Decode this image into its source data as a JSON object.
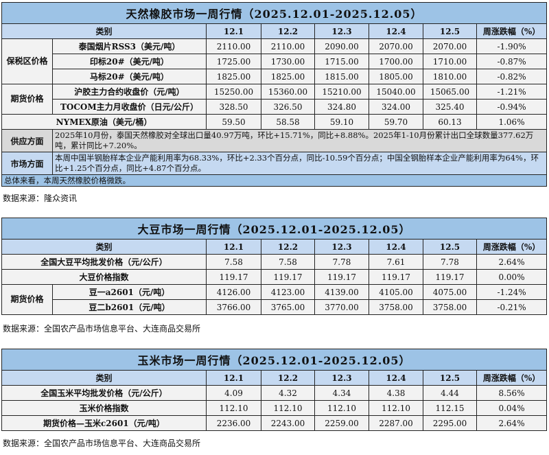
{
  "columns_header": {
    "category": "类别",
    "dates": [
      "12.1",
      "12.2",
      "12.3",
      "12.4",
      "12.5"
    ],
    "change": "周涨跌幅（%）"
  },
  "rubber": {
    "title": "天然橡胶市场一周行情（2025.12.01-2025.12.05）",
    "groups": [
      {
        "group": "保税区价格",
        "rows": [
          {
            "label": "泰国烟片RSS3（美元/吨）",
            "values": [
              "2110.00",
              "2110.00",
              "2090.00",
              "2070.00",
              "2070.00"
            ],
            "change": "-1.90%"
          },
          {
            "label": "印标20#（美元/吨）",
            "values": [
              "1725.00",
              "1730.00",
              "1715.00",
              "1700.00",
              "1710.00"
            ],
            "change": "-0.87%"
          },
          {
            "label": "马标20#（美元/吨）",
            "values": [
              "1825.00",
              "1825.00",
              "1815.00",
              "1805.00",
              "1810.00"
            ],
            "change": "-0.82%"
          }
        ]
      },
      {
        "group": "期货价格",
        "rows": [
          {
            "label": "沪胶主力合约收盘价（元/吨）",
            "values": [
              "15250.00",
              "15360.00",
              "15210.00",
              "15040.00",
              "15065.00"
            ],
            "change": "-1.21%"
          },
          {
            "label": "TOCOM主力月收盘价（日元/公斤）",
            "values": [
              "328.50",
              "326.50",
              "324.80",
              "324.00",
              "325.40"
            ],
            "change": "-0.94%"
          }
        ]
      },
      {
        "group": null,
        "rows": [
          {
            "label": "NYMEX原油（美元/桶）",
            "values": [
              "59.50",
              "58.58",
              "59.10",
              "59.70",
              "60.13"
            ],
            "change": "1.06%"
          }
        ]
      }
    ],
    "supply": {
      "label": "供应方面",
      "text": "2025年10月份，泰国天然橡胶对全球出口量40.97万吨，环比+15.71%，同比+8.88%。2025年1-10月份累计出口全球数量377.62万吨，累计同比+7.20%。"
    },
    "market": {
      "label": "市场方面",
      "text": "本周中国半钢胎样本企业产能利用率为68.33%，环比+2.33个百分点，同比-10.59个百分点；中国全钢胎样本企业产能利用率为64%，环比+1.25个百分点，同比+4.87个百分点。"
    },
    "summary": "总体来看，本周天然橡胶价格微跌。",
    "source": "数据来源：隆众资讯"
  },
  "soybean": {
    "title": "大豆市场一周行情（2025.12.01-2025.12.05）",
    "groups": [
      {
        "group": null,
        "rows": [
          {
            "label": "全国大豆平均批发价格（元/公斤）",
            "values": [
              "7.58",
              "7.58",
              "7.78",
              "7.61",
              "7.78"
            ],
            "change": "2.64%"
          },
          {
            "label": "大豆价格指数",
            "values": [
              "119.17",
              "119.17",
              "119.17",
              "119.17",
              "119.17"
            ],
            "change": "0.00%"
          }
        ]
      },
      {
        "group": "期货价格",
        "rows": [
          {
            "label": "豆一a2601（元/吨）",
            "values": [
              "4126.00",
              "4123.00",
              "4139.00",
              "4105.00",
              "4075.00"
            ],
            "change": "-1.24%"
          },
          {
            "label": "豆二b2601（元/吨）",
            "values": [
              "3766.00",
              "3765.00",
              "3770.00",
              "3758.00",
              "3758.00"
            ],
            "change": "-0.21%"
          }
        ]
      }
    ],
    "source": "数据来源：全国农产品市场信息平台、大连商品交易所"
  },
  "corn": {
    "title": "玉米市场一周行情（2025.12.01-2025.12.05）",
    "groups": [
      {
        "group": null,
        "rows": [
          {
            "label": "全国玉米平均批发价格（元/公斤）",
            "values": [
              "4.09",
              "4.32",
              "4.34",
              "4.38",
              "4.44"
            ],
            "change": "8.56%"
          },
          {
            "label": "玉米价格指数",
            "values": [
              "112.10",
              "112.10",
              "112.10",
              "112.10",
              "112.15"
            ],
            "change": "0.04%"
          },
          {
            "label": "期货价格—玉米c2601（元/吨）",
            "values": [
              "2236.00",
              "2243.00",
              "2259.00",
              "2287.00",
              "2295.00"
            ],
            "change": "2.64%"
          }
        ]
      }
    ],
    "source": "数据来源：全国农产品市场信息平台、大连商品交易所"
  }
}
